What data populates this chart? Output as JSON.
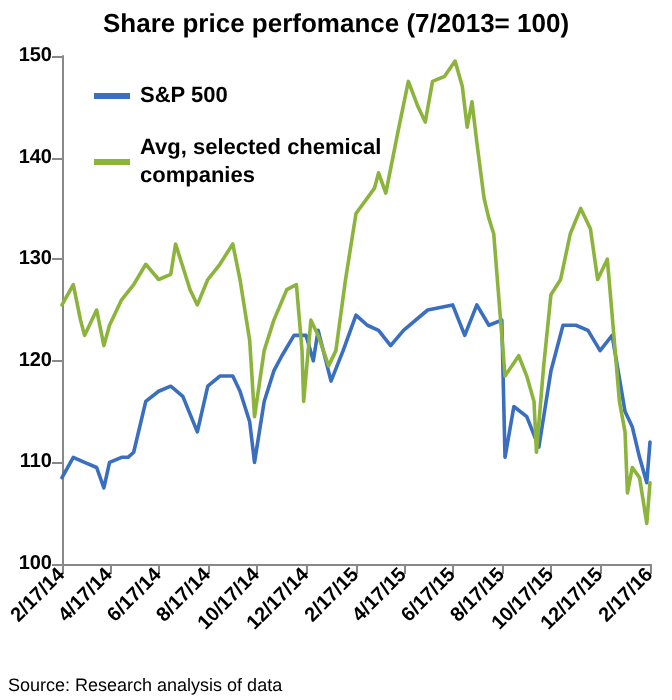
{
  "chart_data": {
    "type": "line",
    "title": "Share price perfomance (7/2013= 100)",
    "annotations": [
      "Source: Research analysis of data"
    ],
    "xlim": [
      "2014-02-17",
      "2016-02-17"
    ],
    "xticks": [
      {
        "value": "2014-02-17",
        "label": "2/17/14"
      },
      {
        "value": "2014-04-17",
        "label": "4/17/14"
      },
      {
        "value": "2014-06-17",
        "label": "6/17/14"
      },
      {
        "value": "2014-08-17",
        "label": "8/17/14"
      },
      {
        "value": "2014-10-17",
        "label": "10/17/14"
      },
      {
        "value": "2014-12-17",
        "label": "12/17/14"
      },
      {
        "value": "2015-02-17",
        "label": "2/17/15"
      },
      {
        "value": "2015-04-17",
        "label": "4/17/15"
      },
      {
        "value": "2015-06-17",
        "label": "6/17/15"
      },
      {
        "value": "2015-08-17",
        "label": "8/17/15"
      },
      {
        "value": "2015-10-17",
        "label": "10/17/15"
      },
      {
        "value": "2015-12-17",
        "label": "12/17/15"
      },
      {
        "value": "2016-02-17",
        "label": "2/17/16"
      }
    ],
    "ylim": [
      100,
      150
    ],
    "yticks": [
      100,
      110,
      120,
      130,
      140,
      150
    ],
    "grid": false,
    "legend": "top left",
    "marker": "none",
    "line_style": "solid",
    "series": [
      {
        "name": "S&P 500",
        "color": "#3a6fbf",
        "x": [
          "2014-02-17",
          "2014-03-03",
          "2014-03-17",
          "2014-04-01",
          "2014-04-10",
          "2014-04-17",
          "2014-05-02",
          "2014-05-10",
          "2014-05-17",
          "2014-06-01",
          "2014-06-17",
          "2014-07-02",
          "2014-07-17",
          "2014-08-04",
          "2014-08-17",
          "2014-09-01",
          "2014-09-17",
          "2014-09-26",
          "2014-10-08",
          "2014-10-14",
          "2014-10-26",
          "2014-11-07",
          "2014-11-17",
          "2014-12-02",
          "2014-12-17",
          "2014-12-26",
          "2015-01-01",
          "2015-01-17",
          "2015-02-01",
          "2015-02-17",
          "2015-03-03",
          "2015-03-17",
          "2015-04-01",
          "2015-04-17",
          "2015-05-17",
          "2015-06-17",
          "2015-07-02",
          "2015-07-17",
          "2015-08-01",
          "2015-08-17",
          "2015-08-21",
          "2015-09-01",
          "2015-09-17",
          "2015-10-02",
          "2015-10-17",
          "2015-11-01",
          "2015-11-17",
          "2015-12-02",
          "2015-12-17",
          "2016-01-01",
          "2016-01-17",
          "2016-01-26",
          "2016-02-04",
          "2016-02-13",
          "2016-02-17"
        ],
        "values": [
          108.5,
          110.5,
          110,
          109.5,
          107.5,
          110,
          110.5,
          110.5,
          111,
          116,
          117,
          117.5,
          116.5,
          113,
          117.5,
          118.5,
          118.5,
          117,
          114,
          110,
          116,
          119,
          120.5,
          122.5,
          122.5,
          120,
          123,
          118,
          121,
          124.5,
          123.5,
          123,
          121.5,
          123,
          125,
          125.5,
          122.5,
          125.5,
          123.5,
          124,
          110.5,
          115.5,
          114.5,
          111.5,
          119,
          123.5,
          123.5,
          123,
          121,
          122.5,
          115,
          113.5,
          110.5,
          108,
          112
        ]
      },
      {
        "name": "Avg, selected chemical companies",
        "color": "#8cb43c",
        "x": [
          "2014-02-17",
          "2014-03-03",
          "2014-03-12",
          "2014-03-17",
          "2014-04-01",
          "2014-04-10",
          "2014-04-17",
          "2014-05-02",
          "2014-05-17",
          "2014-06-01",
          "2014-06-17",
          "2014-07-02",
          "2014-07-08",
          "2014-07-26",
          "2014-08-04",
          "2014-08-17",
          "2014-09-01",
          "2014-09-17",
          "2014-09-26",
          "2014-10-08",
          "2014-10-14",
          "2014-10-26",
          "2014-11-07",
          "2014-11-23",
          "2014-12-05",
          "2014-12-12",
          "2014-12-14",
          "2014-12-23",
          "2015-01-01",
          "2015-01-14",
          "2015-01-23",
          "2015-02-04",
          "2015-02-17",
          "2015-03-12",
          "2015-03-17",
          "2015-03-26",
          "2015-04-10",
          "2015-04-23",
          "2015-05-05",
          "2015-05-14",
          "2015-05-23",
          "2015-06-07",
          "2015-06-20",
          "2015-06-29",
          "2015-07-05",
          "2015-07-11",
          "2015-07-17",
          "2015-07-26",
          "2015-08-01",
          "2015-08-07",
          "2015-08-17",
          "2015-08-21",
          "2015-09-07",
          "2015-09-17",
          "2015-09-26",
          "2015-09-29",
          "2015-10-08",
          "2015-10-17",
          "2015-10-29",
          "2015-11-10",
          "2015-11-23",
          "2015-12-05",
          "2015-12-14",
          "2015-12-26",
          "2016-01-01",
          "2016-01-10",
          "2016-01-17",
          "2016-01-20",
          "2016-01-26",
          "2016-02-04",
          "2016-02-13",
          "2016-02-17"
        ],
        "values": [
          125.5,
          127.5,
          124,
          122.5,
          125,
          121.5,
          123.5,
          126,
          127.5,
          129.5,
          128,
          128.5,
          131.5,
          127,
          125.5,
          128,
          129.5,
          131.5,
          128,
          122,
          114.5,
          121,
          124,
          127,
          127.5,
          121,
          116,
          124,
          122.5,
          119.5,
          121,
          128,
          134.5,
          137,
          138.5,
          136.5,
          142.5,
          147.5,
          145,
          143.5,
          147.5,
          148,
          149.5,
          147,
          143,
          145.5,
          141.5,
          136,
          134,
          132.5,
          122.5,
          118.5,
          120.5,
          118.5,
          116,
          111,
          119.5,
          126.5,
          128,
          132.5,
          135,
          133,
          128,
          130,
          124.5,
          116,
          113,
          107,
          109.5,
          108.5,
          104,
          108
        ]
      }
    ]
  }
}
